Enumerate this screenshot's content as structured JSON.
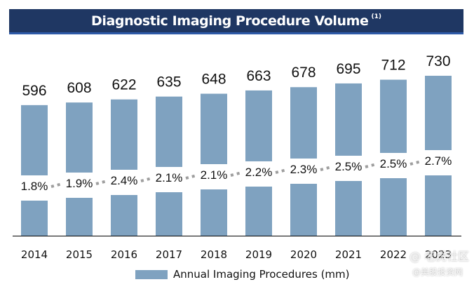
{
  "title": "Diagnostic Imaging Procedure Volume",
  "title_note": "(1)",
  "legend_label": "Annual Imaging Procedures (mm)",
  "watermark": "@ 老虎社区",
  "watermark_sub": "@美股投资网",
  "colors": {
    "bar": "#7fa2c0",
    "title_bg": "#1f3763",
    "dots": "#9e9e9e",
    "axis": "#000000"
  },
  "chart_data": {
    "type": "bar",
    "title": "Diagnostic Imaging Procedure Volume",
    "categories": [
      "2014",
      "2015",
      "2016",
      "2017",
      "2018",
      "2019",
      "2020",
      "2021",
      "2022",
      "2023"
    ],
    "series": [
      {
        "name": "Annual Imaging Procedures (mm)",
        "values": [
          596,
          608,
          622,
          635,
          648,
          663,
          678,
          695,
          712,
          730
        ]
      }
    ],
    "growth_labels": [
      "1.8%",
      "1.9%",
      "2.4%",
      "2.1%",
      "2.1%",
      "2.2%",
      "2.3%",
      "2.5%",
      "2.5%",
      "2.7%"
    ],
    "ylim": [
      0,
      730
    ],
    "grid": false,
    "legend": "bottom"
  }
}
